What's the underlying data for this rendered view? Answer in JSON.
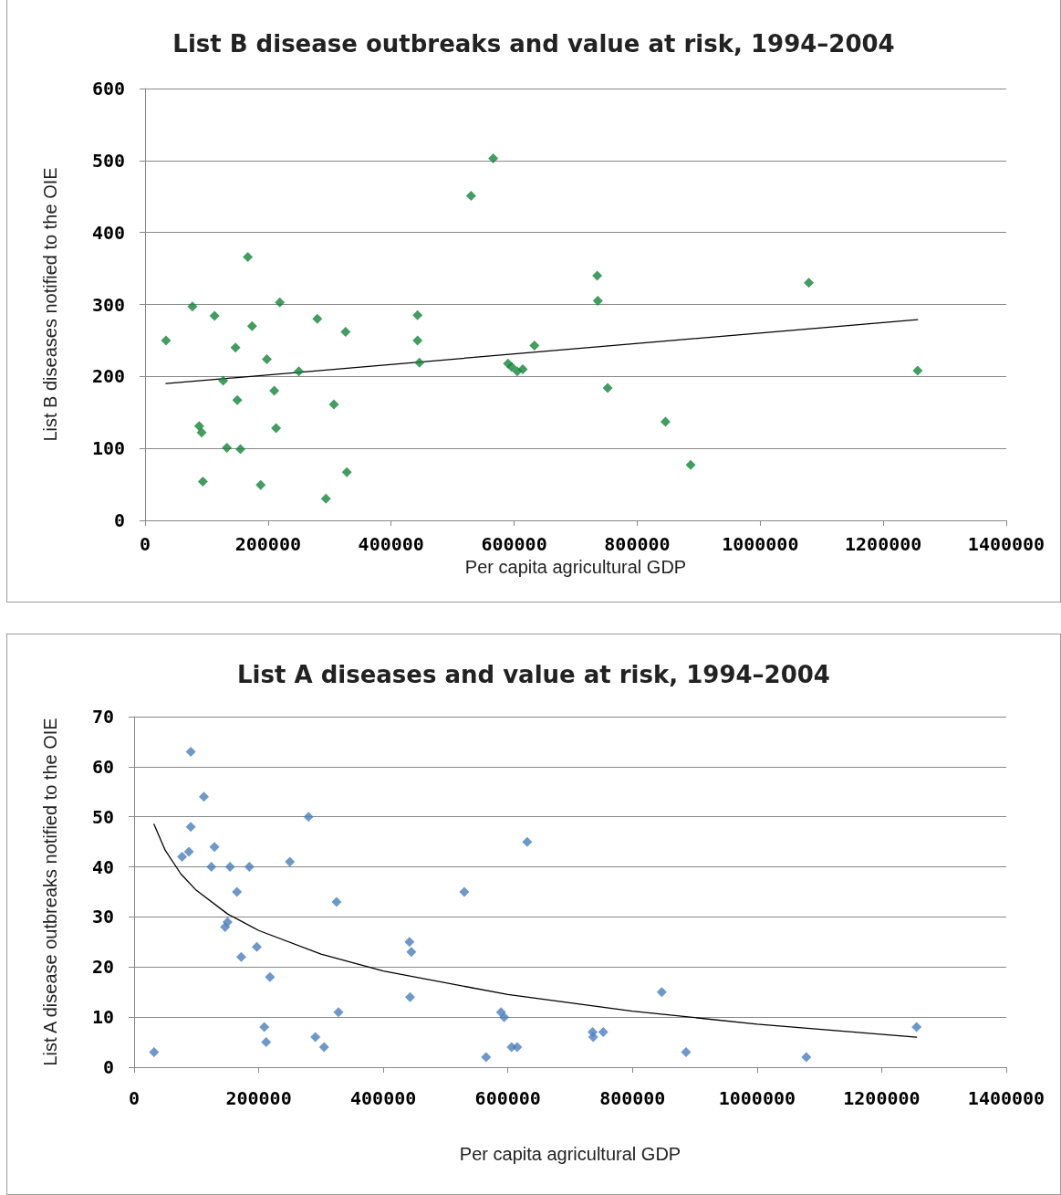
{
  "chart_data": [
    {
      "type": "scatter",
      "title": "List B disease outbreaks and value at risk, 1994–2004",
      "xlabel": "Per capita agricultural GDP",
      "ylabel": "List B diseases notified to the OIE",
      "xlim": [
        0,
        1400000
      ],
      "xticks": [
        0,
        200000,
        400000,
        600000,
        800000,
        1000000,
        1200000,
        1400000
      ],
      "ylim": [
        0,
        600
      ],
      "yticks": [
        0,
        100,
        200,
        300,
        400,
        500,
        600
      ],
      "grid": "y",
      "marker": "diamond",
      "series": [
        {
          "type": "scatter",
          "color": "#13853a",
          "x": [
            34000,
            77000,
            113000,
            167000,
            174000,
            219000,
            280000,
            326000,
            147000,
            198000,
            127000,
            250000,
            150000,
            210000,
            307000,
            88000,
            92000,
            213000,
            133000,
            155000,
            94000,
            188000,
            328000,
            294000,
            443000,
            443000,
            446000,
            530000,
            566000,
            590000,
            596000,
            605000,
            614000,
            633000,
            735000,
            736000,
            752000,
            846000,
            887000,
            1079000,
            1256000
          ],
          "values": [
            250,
            297,
            284,
            366,
            270,
            303,
            280,
            262,
            240,
            224,
            194,
            207,
            167,
            180,
            161,
            131,
            122,
            128,
            101,
            99,
            54,
            49,
            67,
            30,
            285,
            250,
            219,
            451,
            503,
            218,
            213,
            207,
            210,
            243,
            340,
            305,
            184,
            137,
            77,
            330,
            208
          ]
        },
        {
          "type": "line",
          "color": "#000000",
          "line_style": "solid",
          "marker": "none",
          "x": [
            34000,
            1256000
          ],
          "values": [
            190,
            279
          ]
        }
      ]
    },
    {
      "type": "scatter",
      "title": "List A diseases and value at risk, 1994–2004",
      "xlabel": "Per capita agricultural GDP",
      "ylabel": "List A disease outbreaks notified to the OIE",
      "xlim": [
        0,
        1400000
      ],
      "xticks": [
        0,
        200000,
        400000,
        600000,
        800000,
        1000000,
        1200000,
        1400000
      ],
      "ylim": [
        0,
        70
      ],
      "yticks": [
        0,
        10,
        20,
        30,
        40,
        50,
        60,
        70
      ],
      "grid": "y",
      "marker": "diamond",
      "series": [
        {
          "type": "scatter",
          "color": "#4a7ebb",
          "x": [
            32000,
            77000,
            88000,
            91000,
            91000,
            112000,
            124000,
            129000,
            146000,
            150000,
            154000,
            165000,
            172000,
            185000,
            197000,
            209000,
            212000,
            218000,
            250000,
            280000,
            291000,
            305000,
            325000,
            328000,
            442000,
            445000,
            443000,
            530000,
            565000,
            589000,
            594000,
            606000,
            615000,
            631000,
            736000,
            737000,
            753000,
            847000,
            886000,
            1079000,
            1256000
          ],
          "values": [
            3,
            42,
            43,
            63,
            48,
            54,
            40,
            44,
            28,
            29,
            40,
            35,
            22,
            40,
            24,
            8,
            5,
            18,
            41,
            50,
            6,
            4,
            33,
            11,
            25,
            23,
            14,
            35,
            2,
            11,
            10,
            4,
            4,
            45,
            7,
            6,
            7,
            15,
            3,
            2,
            8
          ]
        },
        {
          "type": "line",
          "color": "#000000",
          "line_style": "solid",
          "marker": "none",
          "x": [
            32000,
            50000,
            75000,
            100000,
            150000,
            200000,
            300000,
            400000,
            600000,
            800000,
            1000000,
            1256000
          ],
          "values": [
            48.5,
            43.3,
            38.6,
            35.3,
            30.6,
            27.3,
            22.6,
            19.2,
            14.5,
            11.2,
            8.6,
            6.0
          ]
        }
      ]
    }
  ]
}
